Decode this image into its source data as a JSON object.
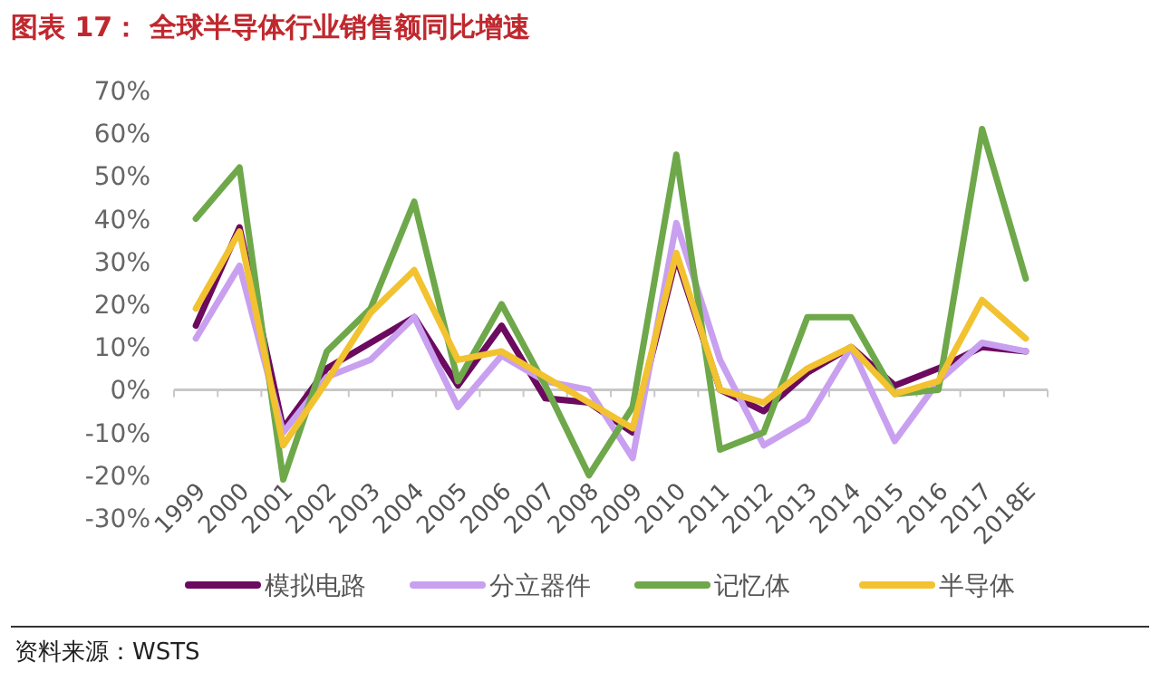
{
  "chart_data": {
    "type": "line",
    "title": "图表 17：  全球半导体行业销售额同比增速",
    "categories": [
      "1999",
      "2000",
      "2001",
      "2002",
      "2003",
      "2004",
      "2005",
      "2006",
      "2007",
      "2008",
      "2009",
      "2010",
      "2011",
      "2012",
      "2013",
      "2014",
      "2015",
      "2016",
      "2017",
      "2018E"
    ],
    "series": [
      {
        "name": "模拟电路",
        "color": "#6b0a5e",
        "values": [
          15,
          38,
          -9,
          5,
          11,
          17,
          1,
          15,
          -2,
          -3,
          -10,
          31,
          0,
          -5,
          4,
          10,
          1,
          5,
          10,
          9
        ]
      },
      {
        "name": "分立器件",
        "color": "#c9a0f0",
        "values": [
          12,
          29,
          -10,
          3,
          7,
          17,
          -4,
          8,
          2,
          0,
          -16,
          39,
          7,
          -13,
          -7,
          10,
          -12,
          2,
          11,
          9
        ]
      },
      {
        "name": "记忆体",
        "color": "#6ea84a",
        "values": [
          40,
          52,
          -21,
          9,
          19,
          44,
          2,
          20,
          1,
          -20,
          -4,
          55,
          -14,
          -10,
          17,
          17,
          -1,
          0,
          61,
          26
        ]
      },
      {
        "name": "半导体",
        "color": "#f2c230",
        "values": [
          19,
          37,
          -13,
          2,
          18,
          28,
          7,
          9,
          3,
          -3,
          -9,
          32,
          0,
          -3,
          5,
          10,
          -1,
          2,
          21,
          12
        ]
      }
    ],
    "ylim": [
      -30,
      70
    ],
    "yticks": [
      {
        "value": -30,
        "label": "-30%"
      },
      {
        "value": -20,
        "label": "-20%"
      },
      {
        "value": -10,
        "label": "-10%"
      },
      {
        "value": 0,
        "label": "0%"
      },
      {
        "value": 10,
        "label": "10%"
      },
      {
        "value": 20,
        "label": "20%"
      },
      {
        "value": 30,
        "label": "30%"
      },
      {
        "value": 40,
        "label": "40%"
      },
      {
        "value": 50,
        "label": "50%"
      },
      {
        "value": 60,
        "label": "60%"
      },
      {
        "value": 70,
        "label": "70%"
      }
    ],
    "legend": "bottom",
    "marker": "none",
    "line_style": "solid",
    "annotations": [
      "资料来源：WSTS"
    ]
  }
}
